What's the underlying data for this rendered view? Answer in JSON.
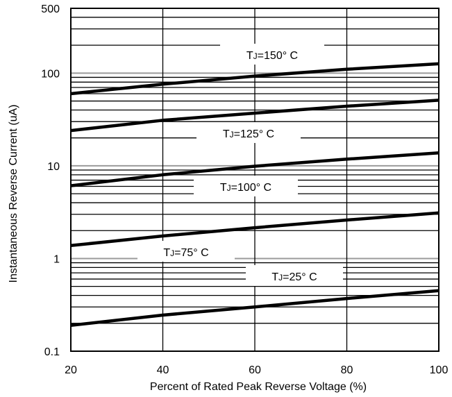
{
  "chart_data": {
    "type": "line",
    "xlabel": "Percent of Rated Peak Reverse Voltage (%)",
    "ylabel": "Instantaneous Reverse Current (uA)",
    "x_ticks": [
      "20",
      "40",
      "60",
      "80",
      "100"
    ],
    "y_ticks": [
      "0.1",
      "1",
      "10",
      "100",
      "500"
    ],
    "xlim": [
      20,
      100
    ],
    "ylim": [
      0.1,
      500
    ],
    "y_scale": "log",
    "grid": true,
    "series": [
      {
        "name": "TJ=150° C",
        "label_main": "T",
        "label_sub": "J",
        "label_rest": "=150° C",
        "x": [
          20,
          40,
          60,
          80,
          100
        ],
        "y": [
          60,
          76,
          93,
          110,
          126
        ]
      },
      {
        "name": "TJ=125° C",
        "label_main": "T",
        "label_sub": "J",
        "label_rest": "=125° C",
        "x": [
          20,
          40,
          60,
          80,
          100
        ],
        "y": [
          24,
          31,
          37,
          44,
          51
        ]
      },
      {
        "name": "TJ=100° C",
        "label_main": "T",
        "label_sub": "J",
        "label_rest": "=100° C",
        "x": [
          20,
          40,
          60,
          80,
          100
        ],
        "y": [
          6.1,
          8.0,
          9.9,
          11.8,
          13.8
        ]
      },
      {
        "name": "TJ=75° C",
        "label_main": "T",
        "label_sub": "J",
        "label_rest": "=75° C",
        "x": [
          20,
          40,
          60,
          80,
          100
        ],
        "y": [
          1.38,
          1.75,
          2.15,
          2.6,
          3.1
        ]
      },
      {
        "name": "TJ=25° C",
        "label_main": "T",
        "label_sub": "J",
        "label_rest": "=25° C",
        "x": [
          20,
          40,
          60,
          80,
          100
        ],
        "y": [
          0.19,
          0.245,
          0.3,
          0.37,
          0.45
        ]
      }
    ]
  }
}
